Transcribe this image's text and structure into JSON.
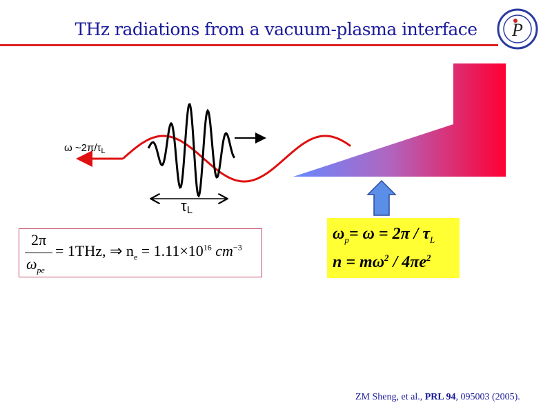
{
  "slide": {
    "title": "THz radiations from a vacuum-plasma interface",
    "logo": {
      "icon": "institute-of-physics-cas-logo",
      "text": "Institute of Physics CAS"
    },
    "diagram": {
      "omega_label": "ω ~2π/τ",
      "omega_sub": "L",
      "tau_label": "τ",
      "tau_sub": "L",
      "colors": {
        "thz_wave": "#e01010",
        "laser_pulse": "#000000",
        "plasma_left": "#6688ff",
        "plasma_right": "#ff0033",
        "arrow": "#5b8ee6"
      }
    },
    "equation_box": {
      "frac_num": "2π",
      "frac_den": "ω",
      "frac_den_sub": "pe",
      "rhs": "= 1THz, ⇒ n",
      "rhs_sub": "e",
      "value": " = 1.11×10",
      "exp": "16",
      "unit": " cm",
      "unit_exp": "−3"
    },
    "highlight_box": {
      "line1_a": "ω",
      "line1_sub": "p",
      "line1_b": "= ω = 2π / τ",
      "line1_sub2": "L",
      "line2": "n = mω",
      "line2_exp": "2",
      "line2_b": " / 4πe",
      "line2_exp2": "2"
    },
    "citation": {
      "authors": "ZM Sheng, et al., ",
      "journal": "PRL 94",
      "rest": ", 095003 (2005)."
    }
  }
}
